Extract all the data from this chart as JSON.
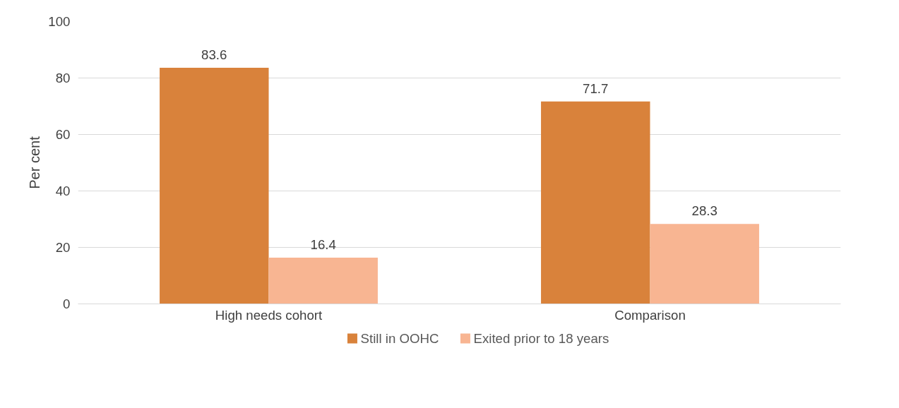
{
  "chart_data": {
    "type": "bar",
    "ylabel": "Per cent",
    "categories": [
      "High needs cohort",
      "Comparison"
    ],
    "series": [
      {
        "name": "Still in OOHC",
        "color": "#d9823b",
        "values": [
          83.6,
          71.7
        ]
      },
      {
        "name": "Exited prior to 18 years",
        "color": "#f8b592",
        "values": [
          16.4,
          28.3
        ]
      }
    ],
    "ylim": [
      0,
      100
    ],
    "yticks": [
      0,
      20,
      40,
      60,
      80,
      100
    ],
    "grid": "y",
    "legend": "bottom",
    "data_labels": true
  }
}
